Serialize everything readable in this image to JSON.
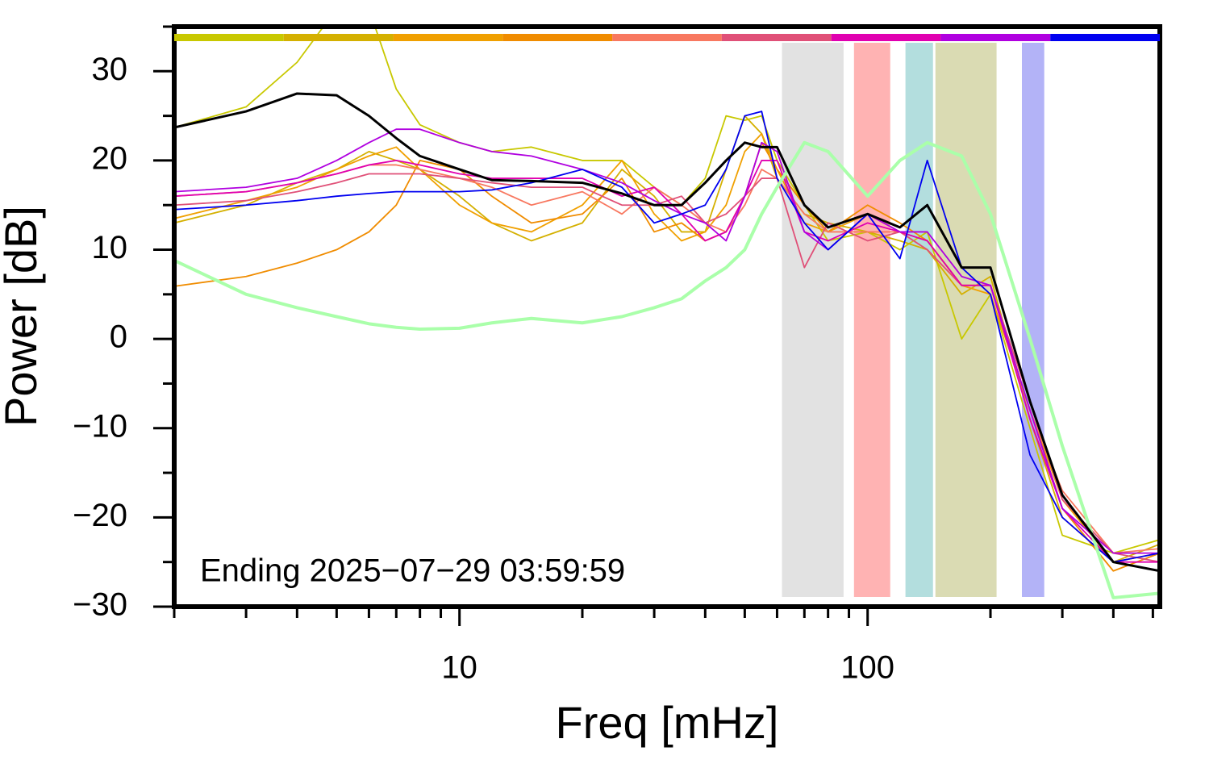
{
  "chart_data": {
    "type": "line",
    "x_label": "Freq [mHz]",
    "y_label": "Power [dB]",
    "annotation": "Ending 2025−07−29 03:59:59",
    "x_scale": "log",
    "xlim": [
      2,
      520
    ],
    "ylim": [
      -30,
      35
    ],
    "xticks": [
      10,
      100
    ],
    "xminorticks": [
      2,
      3,
      4,
      5,
      6,
      7,
      8,
      9,
      20,
      30,
      40,
      50,
      60,
      70,
      80,
      90,
      200,
      300,
      400,
      500
    ],
    "yticks": [
      {
        "value": -30,
        "label": "−30"
      },
      {
        "value": -20,
        "label": "−20"
      },
      {
        "value": -10,
        "label": "−10"
      },
      0,
      10,
      20,
      30
    ],
    "yminorticks": [
      -25,
      -15,
      -5,
      5,
      15,
      25,
      35
    ],
    "bands": [
      {
        "from": 61.7,
        "to": 87.3,
        "color": "#e2e2e2"
      },
      {
        "from": 92.6,
        "to": 113.6,
        "color": "#ffb3b3"
      },
      {
        "from": 123.8,
        "to": 144.6,
        "color": "#b3dede"
      },
      {
        "from": 146.6,
        "to": 207,
        "color": "#dadbb3"
      },
      {
        "from": 238.8,
        "to": 270.9,
        "color": "#b3b3f7"
      }
    ],
    "x": [
      2,
      3,
      4,
      5,
      6,
      7,
      8,
      10,
      12,
      15,
      20,
      25,
      30,
      35,
      40,
      45,
      50,
      55,
      60,
      70,
      80,
      100,
      120,
      140,
      170,
      200,
      250,
      300,
      400,
      520
    ],
    "series": [
      {
        "color": "#c8c800",
        "top_bar": true,
        "values": [
          23.7,
          26,
          31,
          37,
          37,
          28,
          24,
          22,
          21,
          21.5,
          20,
          20,
          17,
          15,
          18,
          25,
          24.5,
          25,
          20,
          15,
          11,
          12,
          10,
          12,
          0,
          5,
          -10,
          -22,
          -24,
          -22.5
        ]
      },
      {
        "color": "#d4b000",
        "top_bar": true,
        "values": [
          13,
          15,
          17.5,
          19,
          21,
          20,
          19,
          16,
          13,
          11,
          13,
          19,
          16,
          12,
          12,
          19,
          25,
          23,
          18,
          14,
          13,
          12,
          11,
          10,
          5,
          7,
          -9,
          -20,
          -25,
          -23
        ]
      },
      {
        "color": "#f0a000",
        "top_bar": true,
        "values": [
          13.5,
          15.5,
          17,
          19,
          20.5,
          21.5,
          19,
          15,
          13,
          12,
          15,
          20,
          14,
          11,
          12,
          15,
          21,
          23,
          19,
          13,
          12,
          14,
          12,
          11,
          6,
          5,
          -8,
          -18,
          -25,
          -24
        ]
      },
      {
        "color": "#f08c00",
        "top_bar": true,
        "values": [
          5.9,
          7,
          8.5,
          10,
          12,
          15,
          20,
          19,
          16,
          13,
          14,
          18,
          12,
          13,
          11,
          12,
          16,
          22,
          19,
          15,
          12,
          15,
          13,
          11,
          6,
          6,
          -8,
          -19,
          -26,
          -24
        ]
      },
      {
        "color": "#f87860",
        "top_bar": true,
        "values": [
          16,
          16.5,
          17.5,
          18.5,
          19.5,
          19.5,
          19,
          18,
          17,
          15,
          16.5,
          14,
          17,
          15,
          13,
          12,
          15,
          19,
          18,
          14,
          12,
          12,
          12,
          10,
          6,
          6,
          -8,
          -17,
          -24,
          -23.5
        ]
      },
      {
        "color": "#e05078",
        "top_bar": true,
        "values": [
          15,
          15.5,
          16.5,
          17.5,
          18.5,
          18.5,
          18.5,
          18,
          17.5,
          17,
          17,
          15,
          15,
          16,
          13,
          14,
          16,
          18,
          18,
          8,
          13,
          11,
          12,
          10,
          6,
          6,
          -7,
          -18,
          -24,
          -25
        ]
      },
      {
        "color": "#e000b0",
        "top_bar": true,
        "values": [
          16,
          16.5,
          17.5,
          18.5,
          19.5,
          20,
          19.5,
          18.5,
          18,
          18,
          18,
          16,
          17,
          14,
          11,
          12,
          16,
          20,
          20,
          12,
          11,
          13,
          12,
          11,
          6,
          6,
          -9,
          -19,
          -25,
          -25
        ]
      },
      {
        "color": "#b000e0",
        "top_bar": true,
        "values": [
          16.5,
          17,
          18,
          20,
          22,
          23.5,
          23.5,
          22,
          21,
          20.5,
          19,
          17.5,
          15.5,
          14,
          13,
          11,
          16,
          22,
          21,
          12,
          10,
          14,
          12,
          12,
          7,
          6,
          -8,
          -19,
          -24,
          -24
        ]
      },
      {
        "color": "#0000f0",
        "top_bar": true,
        "values": [
          14.5,
          15,
          15.5,
          16,
          16.3,
          16.5,
          16.5,
          16.5,
          16.7,
          17.5,
          19,
          17,
          13,
          14,
          15,
          19,
          25,
          25.5,
          18,
          13,
          10,
          14,
          9,
          20,
          8,
          5,
          -13,
          -20,
          -25,
          -24
        ]
      },
      {
        "color": "#aaffaa",
        "width": 4,
        "values": [
          8.8,
          5,
          3.5,
          2.5,
          1.7,
          1.3,
          1.1,
          1.2,
          1.8,
          2.3,
          1.8,
          2.5,
          3.5,
          4.5,
          6.5,
          8,
          10,
          14,
          17,
          22,
          21,
          16,
          20,
          22,
          20.5,
          14,
          0,
          -12,
          -29,
          -28.5
        ]
      },
      {
        "color": "#000000",
        "width": 3,
        "values": [
          23.7,
          25.5,
          27.5,
          27.3,
          25,
          22.5,
          20.5,
          19,
          17.8,
          17.7,
          17.5,
          16.3,
          15,
          15,
          17.5,
          20,
          22,
          21.5,
          21.5,
          15,
          12.5,
          14,
          12.5,
          15,
          8,
          8,
          -7,
          -17.5,
          -25,
          -26
        ]
      }
    ]
  }
}
